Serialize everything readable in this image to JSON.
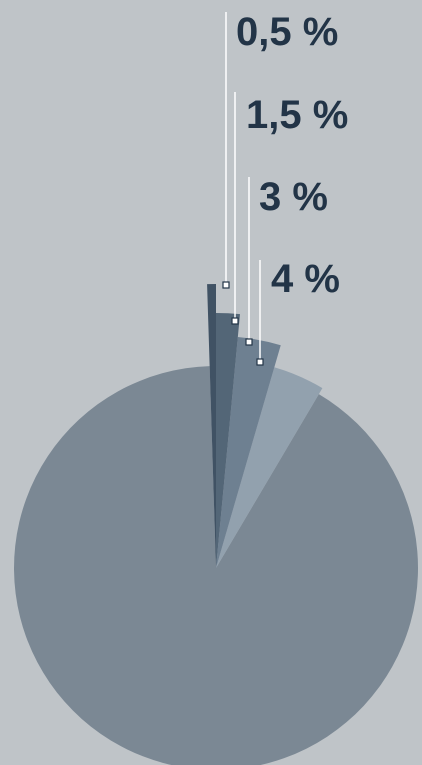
{
  "chart_data": {
    "type": "pie",
    "variant": "exploded-radius",
    "slices": [
      {
        "label": "0,5 %",
        "value": 0.5,
        "color": "#35485b"
      },
      {
        "label": "1,5 %",
        "value": 1.5,
        "color": "#4a5d70"
      },
      {
        "label": "3 %",
        "value": 3,
        "color": "#677a8c"
      },
      {
        "label": "4 %",
        "value": 4,
        "color": "#8e9dab"
      },
      {
        "label": "",
        "value": 91,
        "color": "#7b8894"
      }
    ],
    "background": "#bfc4c8",
    "label_color": "#223447",
    "leader_color": "#ffffff"
  }
}
